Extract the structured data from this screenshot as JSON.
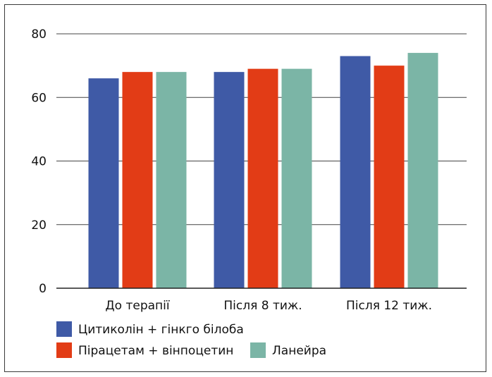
{
  "chart_data": {
    "type": "bar",
    "categories": [
      "До терапії",
      "Після 8 тиж.",
      "Після 12 тиж."
    ],
    "series": [
      {
        "name": "Цитиколін + гінкго білоба",
        "color": "#3f5aa6",
        "values": [
          66,
          68,
          73
        ]
      },
      {
        "name": "Пірацетам + вінпоцетин",
        "color": "#e23c16",
        "values": [
          68,
          69,
          70
        ]
      },
      {
        "name": "Ланейра",
        "color": "#7bb5a6",
        "values": [
          68,
          69,
          74
        ]
      }
    ],
    "ylim": [
      0,
      80
    ],
    "yticks": [
      0,
      20,
      40,
      60,
      80
    ],
    "grid": true,
    "legend_placement": "bottom-left"
  }
}
